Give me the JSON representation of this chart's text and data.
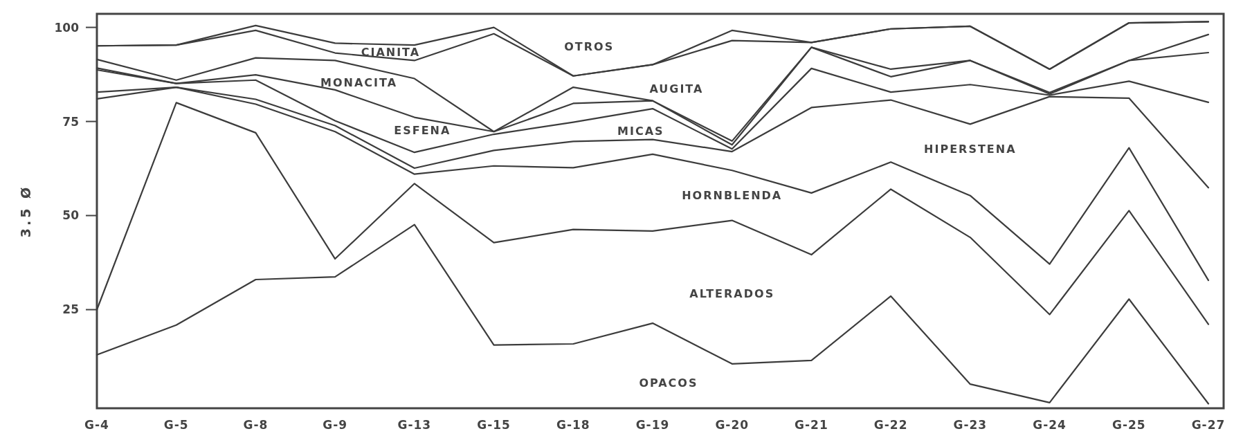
{
  "chart_data": {
    "type": "line",
    "ylabel": "3.5 Ø",
    "categories": [
      "G-4",
      "G-5",
      "G-8",
      "G-9",
      "G-13",
      "G-15",
      "G-18",
      "G-19",
      "G-20",
      "G-21",
      "G-22",
      "G-23",
      "G-24",
      "G-25",
      "G-27"
    ],
    "ylim": [
      -1.2,
      103.6
    ],
    "yticks": [
      25,
      50,
      75,
      100
    ],
    "grid": false,
    "marker": "none",
    "line_style": "solid",
    "series": [
      {
        "color": "#3c3c3c",
        "values": [
          13,
          20.9,
          33,
          33.7,
          47.6,
          15.6,
          15.9,
          21.4,
          10.6,
          11.5,
          28.6,
          5.2,
          0.3,
          27.8,
          0
        ]
      },
      {
        "color": "#3c3c3c",
        "values": [
          25,
          80,
          72,
          38.5,
          58.5,
          42.8,
          46.3,
          45.9,
          48.7,
          39.6,
          57,
          44.2,
          23.7,
          51.3,
          21.1
        ]
      },
      {
        "color": "#3c3c3c",
        "values": [
          81,
          84.1,
          79.6,
          72.3,
          61,
          63.2,
          62.7,
          66.3,
          62,
          56,
          64.2,
          55.3,
          37.1,
          68,
          32.8
        ]
      },
      {
        "color": "#3c3c3c",
        "values": [
          82.8,
          84.1,
          80.9,
          73.9,
          62.6,
          67.3,
          69.7,
          70.2,
          67,
          78.7,
          80.7,
          74.3,
          81.6,
          81.2,
          57.4
        ]
      },
      {
        "color": "#3c3c3c",
        "values": [
          88.7,
          85.1,
          86,
          75.2,
          66.8,
          71.6,
          74.8,
          78.4,
          67.7,
          89.1,
          82.8,
          84.8,
          82,
          85.7,
          80.1
        ]
      },
      {
        "color": "#3c3c3c",
        "values": [
          89.2,
          85.1,
          87.4,
          83.4,
          76.1,
          72.3,
          79.8,
          80.5,
          68.8,
          94.7,
          86.9,
          91.2,
          82.3,
          91.2,
          93.3
        ]
      },
      {
        "color": "#3c3c3c",
        "values": [
          91.5,
          86,
          91.9,
          91.2,
          86.4,
          72.3,
          84.1,
          80.5,
          69.8,
          94.7,
          88.9,
          91.2,
          82.7,
          91.2,
          98.1
        ]
      },
      {
        "color": "#3c3c3c",
        "values": [
          95.1,
          95.3,
          99.2,
          93.2,
          91.2,
          98.3,
          87.1,
          90.1,
          96.5,
          96,
          99.6,
          100.3,
          88.9,
          101.2,
          101.5
        ]
      },
      {
        "color": "#3c3c3c",
        "values": [
          95.1,
          95.3,
          100.5,
          95.8,
          95.3,
          100,
          87.1,
          90.1,
          99.2,
          96,
          99.6,
          100.3,
          88.9,
          101.2,
          101.5
        ]
      }
    ],
    "annotations": [
      "OTROS",
      "CIANITA",
      "MONACITA",
      "AUGITA",
      "ESFENA",
      "MICAS",
      "HIPERSTENA",
      "HORNBLENDA",
      "ALTERADOS",
      "OPACOS"
    ]
  }
}
